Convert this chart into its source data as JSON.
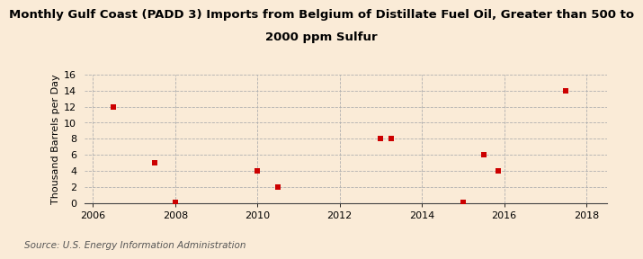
{
  "title_line1": "Monthly Gulf Coast (PADD 3) Imports from Belgium of Distillate Fuel Oil, Greater than 500 to",
  "title_line2": "2000 ppm Sulfur",
  "ylabel": "Thousand Barrels per Day",
  "source": "Source: U.S. Energy Information Administration",
  "background_color": "#faebd7",
  "scatter_color": "#cc0000",
  "scatter_points": [
    [
      2006.5,
      12.0
    ],
    [
      2007.5,
      5.0
    ],
    [
      2008.0,
      0.1
    ],
    [
      2010.0,
      4.0
    ],
    [
      2010.5,
      2.0
    ],
    [
      2013.0,
      8.0
    ],
    [
      2013.25,
      8.0
    ],
    [
      2015.0,
      0.1
    ],
    [
      2015.5,
      6.0
    ],
    [
      2015.85,
      4.0
    ],
    [
      2017.5,
      14.0
    ]
  ],
  "xlim": [
    2005.8,
    2018.5
  ],
  "ylim": [
    0,
    16
  ],
  "xticks": [
    2006,
    2008,
    2010,
    2012,
    2014,
    2016,
    2018
  ],
  "yticks": [
    0,
    2,
    4,
    6,
    8,
    10,
    12,
    14,
    16
  ],
  "title_fontsize": 9.5,
  "axis_label_fontsize": 8,
  "tick_fontsize": 8,
  "source_fontsize": 7.5,
  "marker_size": 18
}
